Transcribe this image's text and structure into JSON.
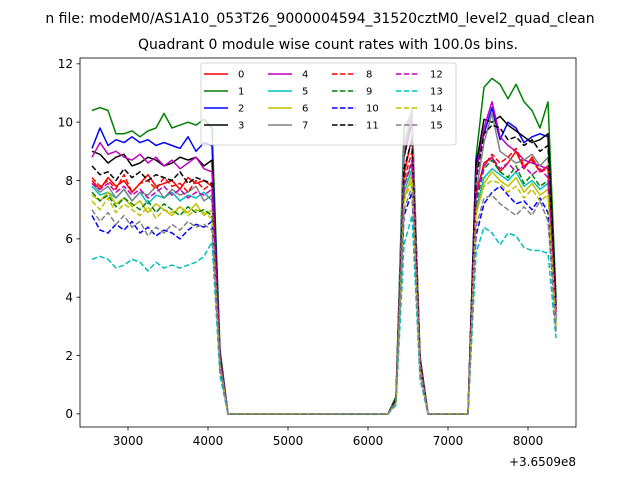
{
  "figure": {
    "suptitle": "n file: modeM0/AS1A10_053T26_9000004594_31520cztM0_level2_quad_clean"
  },
  "chart_data": {
    "type": "line",
    "title": "Quadrant 0 module wise count rates with 100.0s bins.",
    "xlabel": "",
    "ylabel": "",
    "x_offset_label": "+3.6509e8",
    "xlim": [
      2400,
      8600
    ],
    "ylim": [
      -0.45,
      12.2
    ],
    "xticks": [
      3000,
      4000,
      5000,
      6000,
      7000,
      8000
    ],
    "xtick_labels": [
      "3000",
      "4000",
      "5000",
      "6000",
      "7000",
      "8000"
    ],
    "yticks": [
      0,
      2,
      4,
      6,
      8,
      10,
      12
    ],
    "ytick_labels": [
      "0",
      "2",
      "4",
      "6",
      "8",
      "10",
      "12"
    ],
    "grid": false,
    "legend": {
      "placement": "top-center",
      "columns": 4
    },
    "x": [
      2550,
      2650,
      2750,
      2850,
      2950,
      3050,
      3150,
      3250,
      3350,
      3450,
      3550,
      3650,
      3750,
      3850,
      3950,
      4050,
      4150,
      4250,
      4350,
      4450,
      4550,
      4650,
      4750,
      4850,
      4950,
      5050,
      5150,
      5250,
      5350,
      5450,
      5550,
      5650,
      5750,
      5850,
      5950,
      6050,
      6150,
      6250,
      6350,
      6450,
      6550,
      6650,
      6750,
      6850,
      6950,
      7050,
      7150,
      7250,
      7350,
      7450,
      7550,
      7650,
      7750,
      7850,
      7950,
      8050,
      8150,
      8250,
      8350
    ],
    "series": [
      {
        "name": "0",
        "color": "#ff0000",
        "dash": "solid",
        "values": [
          8.0,
          7.7,
          8.1,
          7.8,
          8.0,
          7.6,
          7.9,
          8.2,
          7.8,
          7.9,
          8.0,
          7.7,
          8.1,
          7.9,
          8.0,
          7.8,
          2.0,
          0,
          0,
          0,
          0,
          0,
          0,
          0,
          0,
          0,
          0,
          0,
          0,
          0,
          0,
          0,
          0,
          0,
          0,
          0,
          0,
          0,
          0.5,
          8.2,
          9.5,
          1.8,
          0,
          0,
          0,
          0,
          0,
          0,
          7.5,
          8.6,
          8.8,
          8.3,
          8.6,
          9.0,
          8.4,
          8.8,
          8.3,
          8.5,
          3.5
        ]
      },
      {
        "name": "1",
        "color": "#008000",
        "dash": "solid",
        "values": [
          10.4,
          10.5,
          10.4,
          9.6,
          9.6,
          9.7,
          9.5,
          9.7,
          9.8,
          10.3,
          9.8,
          9.9,
          10.0,
          9.9,
          10.1,
          9.8,
          2.2,
          0,
          0,
          0,
          0,
          0,
          0,
          0,
          0,
          0,
          0,
          0,
          0,
          0,
          0,
          0,
          0,
          0,
          0,
          0,
          0,
          0,
          0.6,
          9.8,
          10.3,
          2.0,
          0,
          0,
          0,
          0,
          0,
          0,
          8.8,
          11.2,
          11.5,
          11.3,
          10.8,
          11.3,
          10.7,
          10.4,
          9.8,
          10.7,
          4.0
        ]
      },
      {
        "name": "2",
        "color": "#0000ff",
        "dash": "solid",
        "values": [
          9.1,
          9.8,
          9.2,
          9.4,
          9.3,
          9.5,
          9.3,
          9.4,
          9.2,
          9.3,
          9.2,
          9.1,
          9.5,
          9.0,
          9.3,
          9.2,
          2.1,
          0,
          0,
          0,
          0,
          0,
          0,
          0,
          0,
          0,
          0,
          0,
          0,
          0,
          0,
          0,
          0,
          0,
          0,
          0,
          0,
          0,
          0.5,
          9.3,
          10.1,
          1.9,
          0,
          0,
          0,
          0,
          0,
          0,
          8.7,
          9.6,
          10.5,
          9.4,
          10.0,
          9.8,
          9.3,
          9.5,
          9.6,
          9.5,
          3.8
        ]
      },
      {
        "name": "3",
        "color": "#000000",
        "dash": "solid",
        "values": [
          9.0,
          8.9,
          8.6,
          8.8,
          8.9,
          8.5,
          8.6,
          8.8,
          8.7,
          8.5,
          8.6,
          8.8,
          8.7,
          8.8,
          8.5,
          8.7,
          2.0,
          0,
          0,
          0,
          0,
          0,
          0,
          0,
          0,
          0,
          0,
          0,
          0,
          0,
          0,
          0,
          0,
          0,
          0,
          0,
          0,
          0,
          0.5,
          8.8,
          10.0,
          1.9,
          0,
          0,
          0,
          0,
          0,
          0,
          8.5,
          10.1,
          10.0,
          10.2,
          9.9,
          9.7,
          9.5,
          9.3,
          9.4,
          9.6,
          3.7
        ]
      },
      {
        "name": "4",
        "color": "#bf00bf",
        "dash": "solid",
        "values": [
          8.8,
          9.3,
          8.9,
          9.0,
          8.8,
          8.7,
          8.9,
          8.6,
          8.8,
          8.5,
          8.7,
          8.4,
          8.6,
          8.8,
          8.4,
          8.3,
          2.0,
          0,
          0,
          0,
          0,
          0,
          0,
          0,
          0,
          0,
          0,
          0,
          0,
          0,
          0,
          0,
          0,
          0,
          0,
          0,
          0,
          0,
          0.5,
          9.0,
          10.2,
          1.9,
          0,
          0,
          0,
          0,
          0,
          0,
          8.2,
          9.8,
          10.7,
          9.5,
          9.2,
          9.0,
          8.7,
          8.6,
          8.5,
          8.4,
          3.6
        ]
      },
      {
        "name": "5",
        "color": "#00bfbf",
        "dash": "solid",
        "values": [
          7.8,
          7.5,
          7.6,
          7.4,
          7.7,
          7.3,
          7.6,
          7.2,
          7.5,
          7.4,
          7.6,
          7.3,
          7.5,
          7.4,
          7.6,
          7.3,
          1.8,
          0,
          0,
          0,
          0,
          0,
          0,
          0,
          0,
          0,
          0,
          0,
          0,
          0,
          0,
          0,
          0,
          0,
          0,
          0,
          0,
          0,
          0.4,
          7.6,
          8.4,
          1.6,
          0,
          0,
          0,
          0,
          0,
          0,
          7.0,
          8.1,
          8.4,
          8.2,
          8.0,
          8.3,
          7.8,
          8.0,
          7.7,
          7.9,
          3.2
        ]
      },
      {
        "name": "6",
        "color": "#bfbf00",
        "dash": "solid",
        "values": [
          7.5,
          7.3,
          7.6,
          7.2,
          7.4,
          7.1,
          7.3,
          6.9,
          7.2,
          7.0,
          6.8,
          7.1,
          6.9,
          7.2,
          6.8,
          7.0,
          1.7,
          0,
          0,
          0,
          0,
          0,
          0,
          0,
          0,
          0,
          0,
          0,
          0,
          0,
          0,
          0,
          0,
          0,
          0,
          0,
          0,
          0,
          0.4,
          7.4,
          8.2,
          1.6,
          0,
          0,
          0,
          0,
          0,
          0,
          6.8,
          7.9,
          8.3,
          8.0,
          7.8,
          8.1,
          7.6,
          7.9,
          7.5,
          7.7,
          3.1
        ]
      },
      {
        "name": "7",
        "color": "#808080",
        "dash": "solid",
        "values": [
          7.9,
          7.6,
          7.8,
          7.4,
          7.7,
          7.3,
          7.6,
          7.5,
          7.8,
          7.4,
          7.7,
          7.5,
          7.6,
          7.8,
          7.3,
          7.5,
          1.8,
          0,
          0,
          0,
          0,
          0,
          0,
          0,
          0,
          0,
          0,
          0,
          0,
          0,
          0,
          0,
          0,
          0,
          0,
          0,
          0,
          0,
          0.5,
          9.2,
          10.5,
          1.8,
          0,
          0,
          0,
          0,
          0,
          0,
          7.6,
          9.3,
          10.3,
          9.0,
          8.8,
          8.6,
          8.7,
          8.9,
          8.5,
          8.8,
          3.4
        ]
      },
      {
        "name": "8",
        "color": "#ff0000",
        "dash": "dashed",
        "values": [
          8.1,
          7.8,
          8.0,
          7.7,
          8.2,
          7.6,
          7.9,
          8.0,
          7.7,
          8.1,
          7.8,
          7.9,
          7.6,
          8.0,
          7.7,
          7.9,
          1.9,
          0,
          0,
          0,
          0,
          0,
          0,
          0,
          0,
          0,
          0,
          0,
          0,
          0,
          0,
          0,
          0,
          0,
          0,
          0,
          0,
          0,
          0.5,
          8.0,
          9.0,
          1.7,
          0,
          0,
          0,
          0,
          0,
          0,
          7.6,
          8.5,
          8.9,
          8.6,
          8.8,
          9.1,
          8.5,
          8.7,
          8.3,
          8.4,
          3.5
        ]
      },
      {
        "name": "9",
        "color": "#008000",
        "dash": "dashed",
        "values": [
          7.6,
          7.3,
          7.5,
          7.1,
          7.4,
          7.2,
          7.0,
          7.3,
          6.9,
          7.2,
          7.0,
          6.8,
          7.1,
          6.9,
          7.0,
          6.8,
          1.7,
          0,
          0,
          0,
          0,
          0,
          0,
          0,
          0,
          0,
          0,
          0,
          0,
          0,
          0,
          0,
          0,
          0,
          0,
          0,
          0,
          0,
          0.4,
          7.8,
          8.6,
          1.6,
          0,
          0,
          0,
          0,
          0,
          0,
          7.2,
          8.4,
          8.7,
          8.3,
          8.1,
          8.5,
          7.9,
          8.2,
          7.8,
          8.0,
          3.2
        ]
      },
      {
        "name": "10",
        "color": "#0000ff",
        "dash": "dashed",
        "values": [
          6.8,
          6.3,
          6.2,
          6.5,
          6.3,
          6.6,
          6.2,
          6.4,
          6.1,
          6.3,
          6.2,
          6.0,
          6.3,
          6.5,
          6.4,
          6.6,
          1.6,
          0,
          0,
          0,
          0,
          0,
          0,
          0,
          0,
          0,
          0,
          0,
          0,
          0,
          0,
          0,
          0,
          0,
          0,
          0,
          0,
          0,
          0.4,
          6.8,
          7.6,
          1.4,
          0,
          0,
          0,
          0,
          0,
          0,
          6.1,
          7.2,
          7.6,
          7.8,
          7.5,
          7.2,
          7.3,
          7.0,
          7.4,
          6.9,
          2.9
        ]
      },
      {
        "name": "11",
        "color": "#000000",
        "dash": "dashed",
        "values": [
          8.5,
          8.2,
          8.3,
          8.0,
          8.4,
          8.1,
          8.3,
          8.0,
          8.2,
          8.1,
          8.0,
          8.3,
          7.9,
          8.1,
          8.0,
          7.9,
          1.9,
          0,
          0,
          0,
          0,
          0,
          0,
          0,
          0,
          0,
          0,
          0,
          0,
          0,
          0,
          0,
          0,
          0,
          0,
          0,
          0,
          0,
          0.5,
          8.4,
          9.4,
          1.8,
          0,
          0,
          0,
          0,
          0,
          0,
          8.0,
          9.6,
          9.9,
          9.8,
          9.4,
          9.5,
          9.2,
          9.4,
          9.0,
          9.2,
          3.6
        ]
      },
      {
        "name": "12",
        "color": "#bf00bf",
        "dash": "dashed",
        "values": [
          7.9,
          7.7,
          7.9,
          7.6,
          7.8,
          7.5,
          7.7,
          7.4,
          7.6,
          7.8,
          7.5,
          7.7,
          7.4,
          7.6,
          7.5,
          7.7,
          1.8,
          0,
          0,
          0,
          0,
          0,
          0,
          0,
          0,
          0,
          0,
          0,
          0,
          0,
          0,
          0,
          0,
          0,
          0,
          0,
          0,
          0,
          0.4,
          7.8,
          8.7,
          1.7,
          0,
          0,
          0,
          0,
          0,
          0,
          7.4,
          8.5,
          8.8,
          8.4,
          8.6,
          8.3,
          8.5,
          8.2,
          8.4,
          8.1,
          3.3
        ]
      },
      {
        "name": "13",
        "color": "#00bfbf",
        "dash": "dashed",
        "values": [
          5.3,
          5.4,
          5.3,
          5.0,
          5.1,
          5.3,
          5.2,
          4.9,
          5.2,
          5.0,
          5.1,
          5.0,
          5.1,
          5.2,
          5.4,
          5.9,
          1.3,
          0,
          0,
          0,
          0,
          0,
          0,
          0,
          0,
          0,
          0,
          0,
          0,
          0,
          0,
          0,
          0,
          0,
          0,
          0,
          0,
          0,
          0.3,
          5.8,
          6.8,
          1.2,
          0,
          0,
          0,
          0,
          0,
          0,
          5.5,
          6.4,
          6.2,
          5.8,
          6.2,
          6.1,
          5.7,
          5.6,
          5.6,
          5.5,
          2.6
        ]
      },
      {
        "name": "14",
        "color": "#bfbf00",
        "dash": "dashed",
        "values": [
          7.3,
          7.0,
          7.4,
          6.9,
          7.2,
          7.0,
          6.8,
          7.1,
          6.7,
          7.0,
          6.9,
          7.1,
          6.8,
          7.0,
          6.9,
          6.7,
          1.7,
          0,
          0,
          0,
          0,
          0,
          0,
          0,
          0,
          0,
          0,
          0,
          0,
          0,
          0,
          0,
          0,
          0,
          0,
          0,
          0,
          0,
          0.4,
          7.3,
          8.0,
          1.5,
          0,
          0,
          0,
          0,
          0,
          0,
          6.9,
          7.8,
          8.0,
          7.9,
          7.6,
          7.8,
          7.4,
          7.7,
          7.3,
          7.5,
          3.0
        ]
      },
      {
        "name": "15",
        "color": "#808080",
        "dash": "dashed",
        "values": [
          7.0,
          6.6,
          6.9,
          6.5,
          6.8,
          6.4,
          6.6,
          6.1,
          6.4,
          6.2,
          6.5,
          6.3,
          6.6,
          6.4,
          6.5,
          6.3,
          1.6,
          0,
          0,
          0,
          0,
          0,
          0,
          0,
          0,
          0,
          0,
          0,
          0,
          0,
          0,
          0,
          0,
          0,
          0,
          0,
          0,
          0,
          0.4,
          7.0,
          7.8,
          1.4,
          0,
          0,
          0,
          0,
          0,
          0,
          6.4,
          7.4,
          7.5,
          7.2,
          7.0,
          6.8,
          7.1,
          6.8,
          7.3,
          6.6,
          2.8
        ]
      }
    ]
  }
}
